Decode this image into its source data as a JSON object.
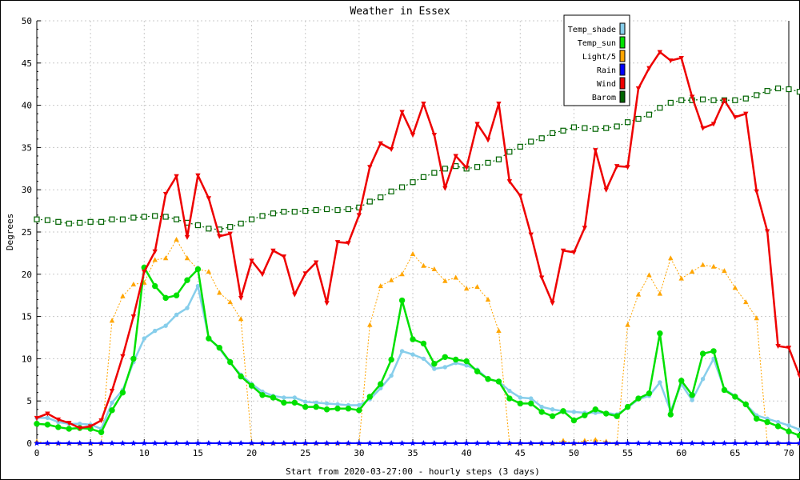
{
  "chart_data": {
    "type": "line",
    "title": "Weather in Essex",
    "xlabel": "Start from 2020-03-27:00 - hourly steps (3 days)",
    "ylabel": "Degrees",
    "xlim": [
      0,
      70
    ],
    "ylim": [
      0,
      50
    ],
    "xticks": [
      0,
      5,
      10,
      15,
      20,
      25,
      30,
      35,
      40,
      45,
      50,
      55,
      60,
      65,
      70
    ],
    "yticks": [
      0,
      5,
      10,
      15,
      20,
      25,
      30,
      35,
      40,
      45,
      50
    ],
    "grid": true,
    "legend_position": "top-right",
    "series": [
      {
        "name": "Temp_shade",
        "color": "#87ceeb",
        "marker": "circle-small",
        "dash": "",
        "width": 2.5,
        "values": [
          3.0,
          3.0,
          2.5,
          2.3,
          2.3,
          2.2,
          1.7,
          4.8,
          6.3,
          9.6,
          12.4,
          13.3,
          13.9,
          15.2,
          16.0,
          18.6,
          12.5,
          11.2,
          9.5,
          8.1,
          7.0,
          6.1,
          5.6,
          5.4,
          5.4,
          4.9,
          4.8,
          4.7,
          4.6,
          4.5,
          4.5,
          5.2,
          6.5,
          8.0,
          10.9,
          10.5,
          10.0,
          8.8,
          9.0,
          9.5,
          9.2,
          8.7,
          7.6,
          7.3,
          6.2,
          5.4,
          5.3,
          4.3,
          4.0,
          3.8,
          3.7,
          3.6,
          3.6,
          3.6,
          3.4,
          4.2,
          5.2,
          5.6,
          7.2,
          3.8,
          7.0,
          5.1,
          7.6,
          10.0,
          6.4,
          5.6,
          4.6,
          3.3,
          2.9,
          2.5,
          2.1,
          1.6
        ]
      },
      {
        "name": "Temp_sun",
        "color": "#00e000",
        "marker": "circle",
        "dash": "",
        "width": 2.5,
        "values": [
          2.3,
          2.2,
          1.9,
          1.7,
          1.8,
          1.7,
          1.3,
          3.9,
          6.0,
          10.0,
          20.8,
          18.6,
          17.2,
          17.5,
          19.3,
          20.6,
          12.4,
          11.3,
          9.6,
          7.9,
          6.8,
          5.7,
          5.4,
          4.8,
          4.8,
          4.3,
          4.3,
          4.0,
          4.1,
          4.1,
          3.9,
          5.5,
          7.0,
          9.9,
          16.9,
          12.3,
          11.8,
          9.4,
          10.2,
          9.9,
          9.7,
          8.5,
          7.6,
          7.3,
          5.3,
          4.7,
          4.7,
          3.7,
          3.2,
          3.8,
          2.7,
          3.3,
          4.0,
          3.5,
          3.2,
          4.3,
          5.3,
          5.9,
          13.0,
          3.4,
          7.4,
          5.7,
          10.6,
          10.9,
          6.3,
          5.5,
          4.6,
          2.9,
          2.5,
          2.0,
          1.4,
          0.9
        ]
      },
      {
        "name": "Light/5",
        "color": "#ffa500",
        "marker": "triangle",
        "dash": "2,2",
        "width": 1,
        "values": [
          0.2,
          0,
          0,
          0,
          0,
          0,
          0,
          14.5,
          17.4,
          18.8,
          19.0,
          21.7,
          21.9,
          24.1,
          21.9,
          20.6,
          20.3,
          17.8,
          16.7,
          14.7,
          0,
          0,
          0,
          0,
          0,
          0,
          0,
          0,
          0,
          0,
          0,
          14.0,
          18.6,
          19.3,
          20.0,
          22.4,
          21.0,
          20.6,
          19.2,
          19.6,
          18.3,
          18.5,
          17.0,
          13.3,
          0,
          0,
          0,
          0,
          0,
          0.3,
          0,
          0.3,
          0.4,
          0.2,
          0,
          14.0,
          17.6,
          19.9,
          17.7,
          21.9,
          19.5,
          20.3,
          21.1,
          20.9,
          20.4,
          18.4,
          16.7,
          14.8,
          0,
          0,
          0,
          0
        ]
      },
      {
        "name": "Rain",
        "color": "#0000ff",
        "marker": "star",
        "dash": "",
        "width": 2,
        "values": [
          0,
          0,
          0,
          0,
          0,
          0,
          0,
          0,
          0,
          0,
          0,
          0,
          0,
          0,
          0,
          0,
          0,
          0,
          0,
          0,
          0,
          0,
          0,
          0,
          0,
          0,
          0,
          0,
          0,
          0,
          0,
          0,
          0,
          0,
          0,
          0,
          0,
          0,
          0,
          0,
          0,
          0,
          0,
          0,
          0,
          0,
          0,
          0,
          0,
          0,
          0,
          0,
          0,
          0,
          0,
          0,
          0,
          0,
          0,
          0,
          0,
          0,
          0,
          0,
          0,
          0,
          0,
          0,
          0,
          0,
          0,
          0
        ]
      },
      {
        "name": "Wind",
        "color": "#ee0000",
        "marker": "triangle-down",
        "dash": "",
        "width": 2.5,
        "values": [
          3.0,
          3.5,
          2.8,
          2.4,
          1.8,
          2.0,
          2.7,
          6.2,
          10.3,
          15.0,
          20.3,
          22.7,
          29.5,
          31.6,
          24.4,
          31.7,
          29.0,
          24.5,
          24.8,
          17.2,
          21.6,
          20.0,
          22.8,
          22.1,
          17.6,
          20.1,
          21.4,
          16.6,
          23.8,
          23.7,
          27.0,
          32.7,
          35.5,
          34.8,
          39.2,
          36.5,
          40.2,
          36.5,
          30.2,
          34.0,
          32.6,
          37.8,
          35.9,
          40.2,
          31.0,
          29.3,
          24.7,
          19.6,
          16.6,
          22.8,
          22.6,
          25.5,
          34.7,
          30.0,
          32.8,
          32.7,
          42.0,
          44.4,
          46.3,
          45.3,
          45.6,
          41.0,
          37.3,
          37.8,
          40.6,
          38.6,
          39.0,
          29.8,
          25.1,
          11.5,
          11.3,
          8.0
        ]
      },
      {
        "name": "Barom",
        "color": "#006400",
        "marker": "square",
        "dash": "2,3",
        "width": 1.2,
        "values": [
          26.5,
          26.4,
          26.2,
          26.0,
          26.1,
          26.2,
          26.2,
          26.5,
          26.5,
          26.7,
          26.8,
          26.9,
          26.8,
          26.5,
          26.1,
          25.8,
          25.4,
          25.3,
          25.6,
          26.0,
          26.5,
          26.9,
          27.2,
          27.4,
          27.4,
          27.5,
          27.6,
          27.7,
          27.6,
          27.7,
          27.9,
          28.6,
          29.1,
          29.8,
          30.3,
          30.9,
          31.5,
          32.0,
          32.5,
          32.8,
          32.5,
          32.7,
          33.2,
          33.6,
          34.5,
          35.1,
          35.7,
          36.1,
          36.7,
          37.0,
          37.4,
          37.3,
          37.2,
          37.3,
          37.5,
          38.0,
          38.4,
          38.9,
          39.7,
          40.3,
          40.6,
          40.6,
          40.7,
          40.6,
          40.6,
          40.6,
          40.8,
          41.2,
          41.7,
          42.0,
          41.9,
          41.6
        ]
      }
    ]
  }
}
